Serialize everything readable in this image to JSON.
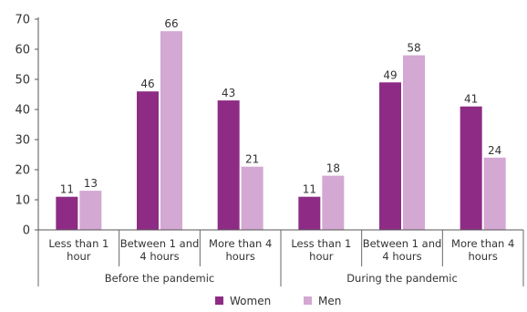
{
  "chart_data": {
    "type": "bar",
    "ylim": [
      0,
      70
    ],
    "yticks": [
      0,
      10,
      20,
      30,
      40,
      50,
      60,
      70
    ],
    "groups": [
      {
        "label": "Before the pandemic",
        "categories": [
          [
            "Less than 1",
            "hour"
          ],
          [
            "Between 1 and",
            "4 hours"
          ],
          [
            "More than 4",
            "hours"
          ]
        ]
      },
      {
        "label": "During the pandemic",
        "categories": [
          [
            "Less than 1",
            "hour"
          ],
          [
            "Between 1 and",
            "4 hours"
          ],
          [
            "More than 4",
            "hours"
          ]
        ]
      }
    ],
    "series": [
      {
        "name": "Women",
        "color": "#8e2c85",
        "values": [
          11,
          46,
          43,
          11,
          49,
          41
        ]
      },
      {
        "name": "Men",
        "color": "#d3a8d2",
        "values": [
          13,
          66,
          21,
          18,
          58,
          24
        ]
      }
    ],
    "legend_position": "bottom",
    "grid": false
  }
}
